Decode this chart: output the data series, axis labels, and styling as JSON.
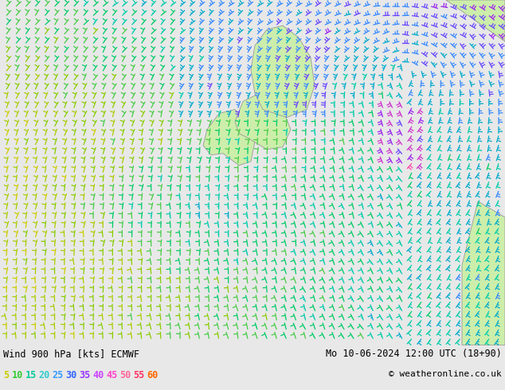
{
  "title_left": "Wind 900 hPa [kts] ECMWF",
  "title_right": "Mo 10-06-2024 12:00 UTC (18+90)",
  "copyright": "© weatheronline.co.uk",
  "legend_values": [
    5,
    10,
    15,
    20,
    25,
    30,
    35,
    40,
    45,
    50,
    55,
    60
  ],
  "legend_colors": [
    "#cccc00",
    "#33cc33",
    "#66cc00",
    "#00cc66",
    "#00cccc",
    "#3399cc",
    "#3366ff",
    "#9933ff",
    "#cc33ff",
    "#ff66cc",
    "#ff3399",
    "#ff6600"
  ],
  "bg_color": "#e8e8e8",
  "bottom_bg": "#ffffff",
  "figsize": [
    6.34,
    4.9
  ],
  "dpi": 100,
  "land_color": "#cceeaa",
  "coast_color": "#999999",
  "map_bg": "#e8e8e8"
}
